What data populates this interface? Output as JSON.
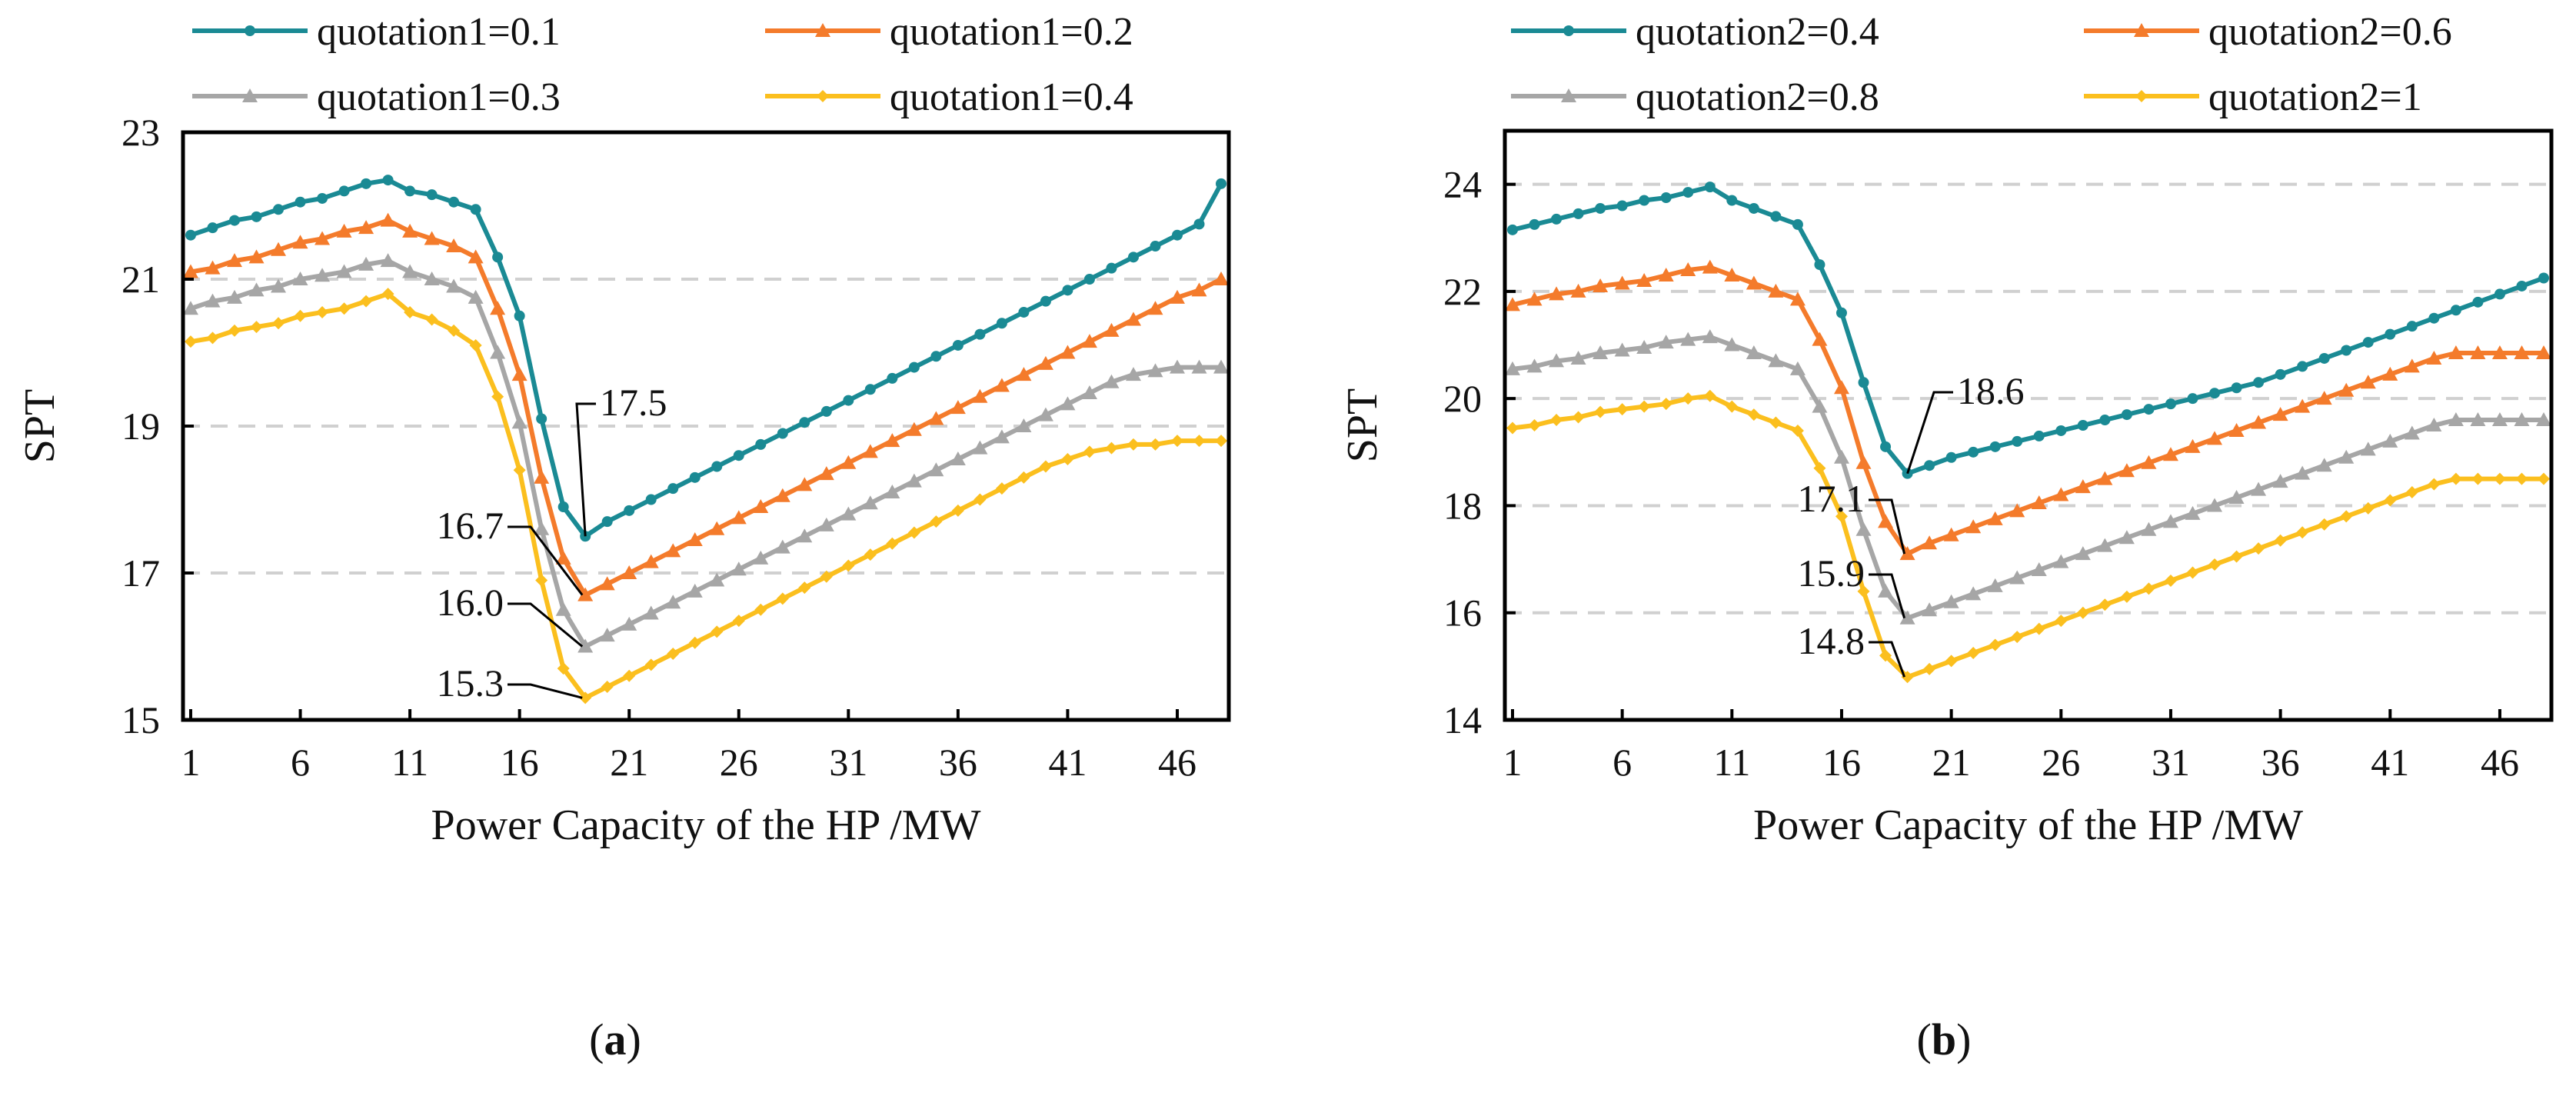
{
  "chart_data": [
    {
      "type": "line",
      "caption": "a",
      "xlabel": "Power Capacity of the HP /MW",
      "ylabel": "SPT",
      "xlim": [
        1,
        48
      ],
      "ylim": [
        15,
        23
      ],
      "x_ticks": [
        1,
        6,
        11,
        16,
        21,
        26,
        31,
        36,
        41,
        46
      ],
      "y_ticks": [
        15,
        17,
        19,
        21,
        23
      ],
      "grid": "horizontal dashed",
      "legend_position": "top",
      "series": [
        {
          "name": "quotation1=0.1",
          "color": "#1a8a94",
          "marker": "circle",
          "values": [
            21.6,
            21.7,
            21.8,
            21.85,
            21.95,
            22.05,
            22.1,
            22.2,
            22.3,
            22.35,
            22.2,
            22.15,
            22.05,
            21.95,
            21.3,
            20.5,
            19.1,
            17.9,
            17.5,
            17.7,
            17.85,
            18.0,
            18.15,
            18.3,
            18.45,
            18.6,
            18.75,
            18.9,
            19.05,
            19.2,
            19.35,
            19.5,
            19.65,
            19.8,
            19.95,
            20.1,
            20.25,
            20.4,
            20.55,
            20.7,
            20.85,
            21.0,
            21.15,
            21.3,
            21.45,
            21.6,
            21.75,
            22.3
          ]
        },
        {
          "name": "quotation1=0.2",
          "color": "#f47b2b",
          "marker": "triangle",
          "values": [
            21.1,
            21.15,
            21.25,
            21.3,
            21.4,
            21.5,
            21.55,
            21.65,
            21.7,
            21.8,
            21.65,
            21.55,
            21.45,
            21.3,
            20.6,
            19.7,
            18.3,
            17.2,
            16.7,
            16.85,
            17.0,
            17.15,
            17.3,
            17.45,
            17.6,
            17.75,
            17.9,
            18.05,
            18.2,
            18.35,
            18.5,
            18.65,
            18.8,
            18.95,
            19.1,
            19.25,
            19.4,
            19.55,
            19.7,
            19.85,
            20.0,
            20.15,
            20.3,
            20.45,
            20.6,
            20.75,
            20.85,
            21.0
          ]
        },
        {
          "name": "quotation1=0.3",
          "color": "#a6a6a6",
          "marker": "triangle",
          "values": [
            20.6,
            20.7,
            20.75,
            20.85,
            20.9,
            21.0,
            21.05,
            21.1,
            21.2,
            21.25,
            21.1,
            21.0,
            20.9,
            20.75,
            20.0,
            19.05,
            17.6,
            16.5,
            16.0,
            16.15,
            16.3,
            16.45,
            16.6,
            16.75,
            16.9,
            17.05,
            17.2,
            17.35,
            17.5,
            17.65,
            17.8,
            17.95,
            18.1,
            18.25,
            18.4,
            18.55,
            18.7,
            18.85,
            19.0,
            19.15,
            19.3,
            19.45,
            19.6,
            19.7,
            19.75,
            19.8,
            19.8,
            19.8
          ]
        },
        {
          "name": "quotation1=0.4",
          "color": "#fbbf1e",
          "marker": "diamond",
          "values": [
            20.15,
            20.2,
            20.3,
            20.35,
            20.4,
            20.5,
            20.55,
            20.6,
            20.7,
            20.8,
            20.55,
            20.45,
            20.3,
            20.1,
            19.4,
            18.4,
            16.9,
            15.7,
            15.3,
            15.45,
            15.6,
            15.75,
            15.9,
            16.05,
            16.2,
            16.35,
            16.5,
            16.65,
            16.8,
            16.95,
            17.1,
            17.25,
            17.4,
            17.55,
            17.7,
            17.85,
            18.0,
            18.15,
            18.3,
            18.45,
            18.55,
            18.65,
            18.7,
            18.75,
            18.75,
            18.8,
            18.8,
            18.8
          ]
        }
      ],
      "annotations": [
        {
          "text": "17.5",
          "x": 19,
          "y": 17.5,
          "series": "quotation1=0.1"
        },
        {
          "text": "16.7",
          "x": 19,
          "y": 16.7,
          "series": "quotation1=0.2"
        },
        {
          "text": "16.0",
          "x": 19,
          "y": 16.0,
          "series": "quotation1=0.3"
        },
        {
          "text": "15.3",
          "x": 19,
          "y": 15.3,
          "series": "quotation1=0.4"
        }
      ]
    },
    {
      "type": "line",
      "caption": "b",
      "xlabel": "Power Capacity of the HP /MW",
      "ylabel": "SPT",
      "xlim": [
        1,
        48
      ],
      "ylim": [
        14,
        25
      ],
      "x_ticks": [
        1,
        6,
        11,
        16,
        21,
        26,
        31,
        36,
        41,
        46
      ],
      "y_ticks": [
        14,
        16,
        18,
        20,
        22,
        24
      ],
      "grid": "horizontal dashed",
      "legend_position": "top",
      "series": [
        {
          "name": "quotation2=0.4",
          "color": "#1a8a94",
          "marker": "circle",
          "values": [
            23.15,
            23.25,
            23.35,
            23.45,
            23.55,
            23.6,
            23.7,
            23.75,
            23.85,
            23.95,
            23.7,
            23.55,
            23.4,
            23.25,
            22.5,
            21.6,
            20.3,
            19.1,
            18.6,
            18.75,
            18.9,
            19.0,
            19.1,
            19.2,
            19.3,
            19.4,
            19.5,
            19.6,
            19.7,
            19.8,
            19.9,
            20.0,
            20.1,
            20.2,
            20.3,
            20.45,
            20.6,
            20.75,
            20.9,
            21.05,
            21.2,
            21.35,
            21.5,
            21.65,
            21.8,
            21.95,
            22.1,
            22.25
          ]
        },
        {
          "name": "quotation2=0.6",
          "color": "#f47b2b",
          "marker": "triangle",
          "values": [
            21.75,
            21.85,
            21.95,
            22.0,
            22.1,
            22.15,
            22.2,
            22.3,
            22.4,
            22.45,
            22.3,
            22.15,
            22.0,
            21.85,
            21.1,
            20.2,
            18.8,
            17.7,
            17.1,
            17.3,
            17.45,
            17.6,
            17.75,
            17.9,
            18.05,
            18.2,
            18.35,
            18.5,
            18.65,
            18.8,
            18.95,
            19.1,
            19.25,
            19.4,
            19.55,
            19.7,
            19.85,
            20.0,
            20.15,
            20.3,
            20.45,
            20.6,
            20.75,
            20.85,
            20.85,
            20.85,
            20.85,
            20.85
          ]
        },
        {
          "name": "quotation2=0.8",
          "color": "#a6a6a6",
          "marker": "triangle",
          "values": [
            20.55,
            20.6,
            20.7,
            20.75,
            20.85,
            20.9,
            20.95,
            21.05,
            21.1,
            21.15,
            21.0,
            20.85,
            20.7,
            20.55,
            19.85,
            18.9,
            17.55,
            16.4,
            15.9,
            16.05,
            16.2,
            16.35,
            16.5,
            16.65,
            16.8,
            16.95,
            17.1,
            17.25,
            17.4,
            17.55,
            17.7,
            17.85,
            18.0,
            18.15,
            18.3,
            18.45,
            18.6,
            18.75,
            18.9,
            19.05,
            19.2,
            19.35,
            19.5,
            19.6,
            19.6,
            19.6,
            19.6,
            19.6
          ]
        },
        {
          "name": "quotation2=1",
          "color": "#fbbf1e",
          "marker": "diamond",
          "values": [
            19.45,
            19.5,
            19.6,
            19.65,
            19.75,
            19.8,
            19.85,
            19.9,
            20.0,
            20.05,
            19.85,
            19.7,
            19.55,
            19.4,
            18.7,
            17.8,
            16.4,
            15.2,
            14.8,
            14.95,
            15.1,
            15.25,
            15.4,
            15.55,
            15.7,
            15.85,
            16.0,
            16.15,
            16.3,
            16.45,
            16.6,
            16.75,
            16.9,
            17.05,
            17.2,
            17.35,
            17.5,
            17.65,
            17.8,
            17.95,
            18.1,
            18.25,
            18.4,
            18.5,
            18.5,
            18.5,
            18.5,
            18.5
          ]
        }
      ],
      "annotations": [
        {
          "text": "18.6",
          "x": 19,
          "y": 18.6,
          "series": "quotation2=0.4"
        },
        {
          "text": "17.1",
          "x": 19,
          "y": 17.1,
          "series": "quotation2=0.6"
        },
        {
          "text": "15.9",
          "x": 19,
          "y": 15.9,
          "series": "quotation2=0.8"
        },
        {
          "text": "14.8",
          "x": 19,
          "y": 14.8,
          "series": "quotation2=1"
        }
      ]
    }
  ]
}
